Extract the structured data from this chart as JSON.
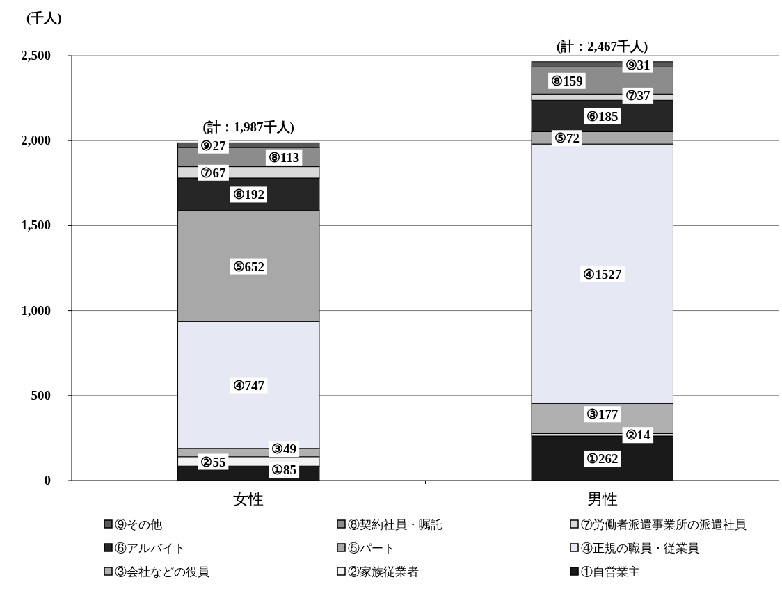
{
  "chart_data": {
    "type": "bar",
    "stacked": true,
    "ylabel": "(千人)",
    "categories": [
      "女性",
      "男性"
    ],
    "series": [
      {
        "name": "①自営業主",
        "color": "#1a1a1a",
        "values": [
          85,
          262
        ],
        "value_labels": [
          "①85",
          "①262"
        ]
      },
      {
        "name": "②家族従業者",
        "color": "#f2f2f2",
        "values": [
          55,
          14
        ],
        "value_labels": [
          "②55",
          "②14"
        ]
      },
      {
        "name": "③会社などの役員",
        "color": "#b0b0b0",
        "values": [
          49,
          177
        ],
        "value_labels": [
          "③49",
          "③177"
        ]
      },
      {
        "name": "④正規の職員・従業員",
        "color": "#e6e8f4",
        "values": [
          747,
          1527
        ],
        "value_labels": [
          "④747",
          "④1527"
        ]
      },
      {
        "name": "⑤パート",
        "color": "#a8a8a8",
        "values": [
          652,
          72
        ],
        "value_labels": [
          "⑤652",
          "⑤72"
        ]
      },
      {
        "name": "⑥アルバイト",
        "color": "#262626",
        "values": [
          192,
          185
        ],
        "value_labels": [
          "⑥192",
          "⑥185"
        ]
      },
      {
        "name": "⑦労働者派遣事業所の派遣社員",
        "color": "#d9d9d9",
        "values": [
          67,
          37
        ],
        "value_labels": [
          "⑦67",
          "⑦37"
        ]
      },
      {
        "name": "⑧契約社員・嘱託",
        "color": "#8c8c8c",
        "values": [
          113,
          159
        ],
        "value_labels": [
          "⑧113",
          "⑧159"
        ]
      },
      {
        "name": "⑨その他",
        "color": "#595959",
        "values": [
          27,
          31
        ],
        "value_labels": [
          "⑨27",
          "⑨31"
        ]
      }
    ],
    "totals": [
      "(計：1,987千人)",
      "(計：2,467千人)"
    ],
    "ylim": [
      0,
      2500
    ],
    "yticks": [
      {
        "value": 0,
        "label": "0"
      },
      {
        "value": 500,
        "label": "500"
      },
      {
        "value": 1000,
        "label": "1,000"
      },
      {
        "value": 1500,
        "label": "1,500"
      },
      {
        "value": 2000,
        "label": "2,000"
      },
      {
        "value": 2500,
        "label": "2,500"
      }
    ],
    "grid": "y",
    "legend": "bottom"
  }
}
